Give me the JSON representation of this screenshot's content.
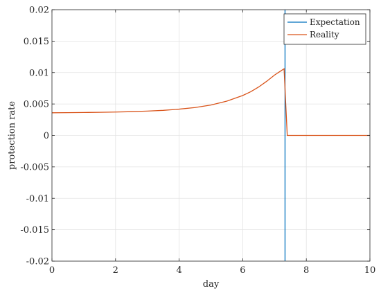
{
  "chart_data": {
    "type": "line",
    "xlabel": "day",
    "ylabel": "protection rate",
    "xlim": [
      0,
      10
    ],
    "ylim": [
      -0.02,
      0.02
    ],
    "xticks": [
      0,
      2,
      4,
      6,
      8,
      10
    ],
    "xtick_labels": [
      "0",
      "2",
      "4",
      "6",
      "8",
      "10"
    ],
    "yticks": [
      -0.02,
      -0.015,
      -0.01,
      -0.005,
      0,
      0.005,
      0.01,
      0.015,
      0.02
    ],
    "ytick_labels": [
      "-0.02",
      "-0.015",
      "-0.01",
      "-0.005",
      "0",
      "0.005",
      "0.01",
      "0.015",
      "0.02"
    ],
    "grid": true,
    "legend_position": "top-right",
    "series": [
      {
        "name": "Expectation",
        "color": "#0072BD",
        "x": [
          7.33,
          7.33
        ],
        "y": [
          -0.02,
          0.02
        ]
      },
      {
        "name": "Reality",
        "color": "#D95319",
        "x": [
          0,
          0.5,
          1,
          1.5,
          2,
          2.5,
          3,
          3.5,
          4,
          4.5,
          5,
          5.5,
          6,
          6.25,
          6.5,
          6.75,
          7,
          7.15,
          7.3,
          7.4,
          8,
          9,
          10
        ],
        "y": [
          0.0036,
          0.00362,
          0.00365,
          0.00368,
          0.00372,
          0.00378,
          0.00387,
          0.00399,
          0.00418,
          0.00444,
          0.00484,
          0.00545,
          0.00635,
          0.00695,
          0.0077,
          0.0086,
          0.0096,
          0.0101,
          0.0106,
          0.0,
          0.0,
          0.0,
          0.0
        ]
      }
    ]
  }
}
